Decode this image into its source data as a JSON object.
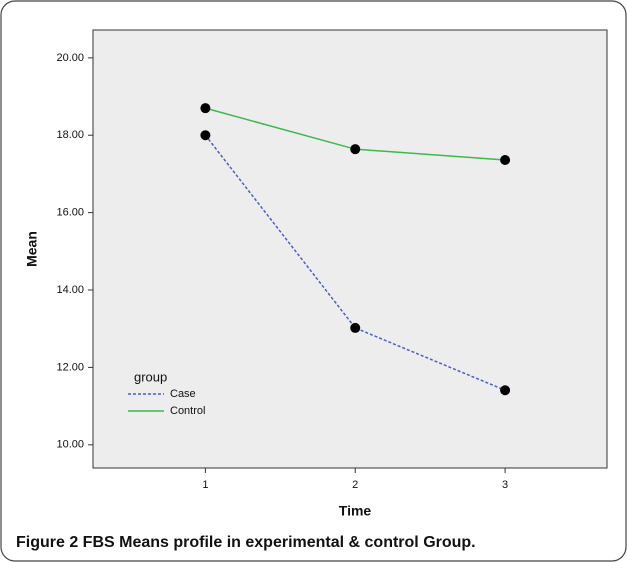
{
  "chart_data": {
    "type": "line",
    "caption": "Figure 2 FBS Means profile in experimental & control Group.",
    "xlabel": "Time",
    "ylabel": "Mean",
    "x": [
      1,
      2,
      3
    ],
    "series": [
      {
        "name": "Case",
        "color": "#4a5fc4",
        "dashed": true,
        "values": [
          18.0,
          13.02,
          11.41
        ]
      },
      {
        "name": "Control",
        "color": "#3db94a",
        "dashed": false,
        "values": [
          18.7,
          17.64,
          17.36
        ]
      }
    ],
    "legend_title": "group",
    "legend": "lower left",
    "xlim": [
      0.25,
      3.68
    ],
    "xticks": [
      1,
      2,
      3
    ],
    "ylim": [
      9.4,
      20.72
    ],
    "yticks": [
      {
        "value": 10,
        "label": "10.00"
      },
      {
        "value": 12,
        "label": "12.00"
      },
      {
        "value": 14,
        "label": "14.00"
      },
      {
        "value": 16,
        "label": "16.00"
      },
      {
        "value": 18,
        "label": "18.00"
      },
      {
        "value": 20,
        "label": "20.00"
      }
    ]
  }
}
